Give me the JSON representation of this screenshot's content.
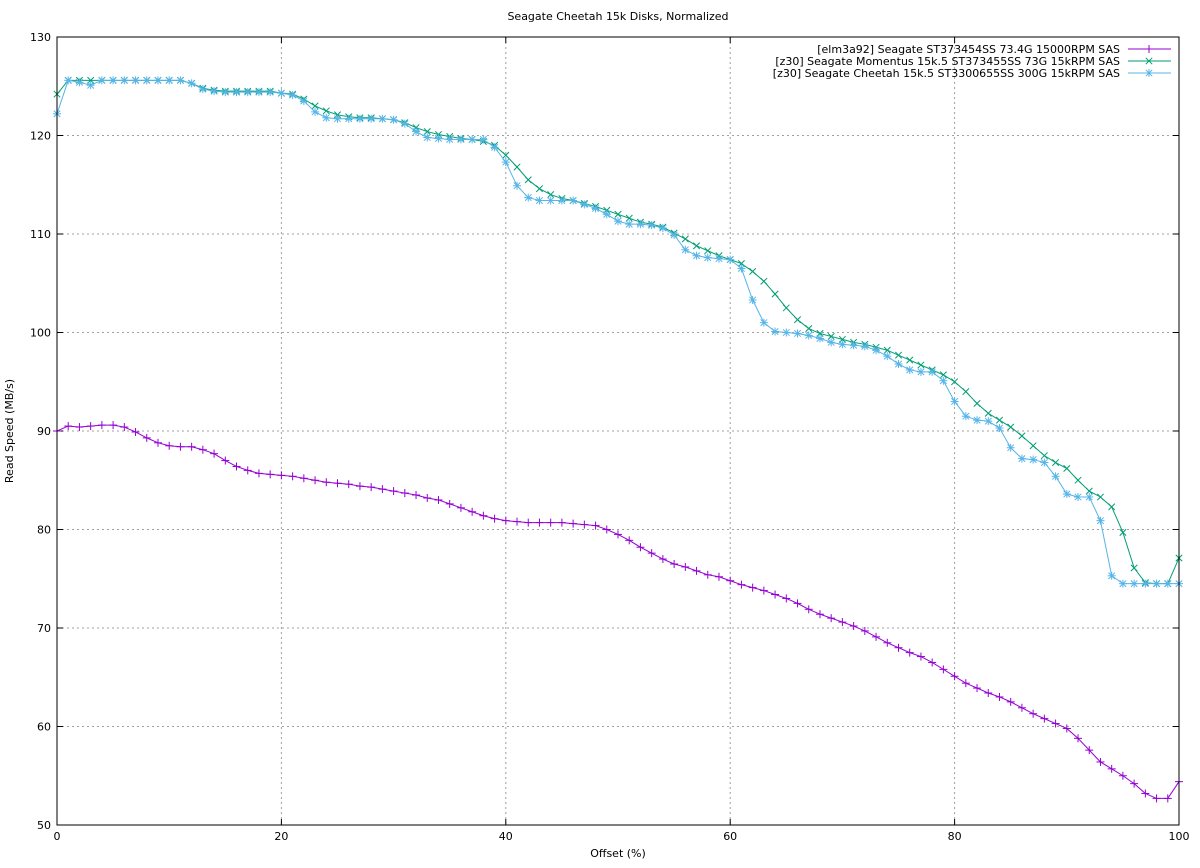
{
  "chart_data": {
    "type": "line",
    "title": "Seagate Cheetah 15k Disks, Normalized",
    "xlabel": "Offset (%)",
    "ylabel": "Read Speed (MB/s)",
    "xlim": [
      0,
      100
    ],
    "ylim": [
      50,
      130
    ],
    "xticks": [
      0,
      20,
      40,
      60,
      80,
      100
    ],
    "yticks": [
      50,
      60,
      70,
      80,
      90,
      100,
      110,
      120,
      130
    ],
    "grid": true,
    "legend_position": "top-right",
    "x": [
      0,
      1,
      2,
      3,
      4,
      5,
      6,
      7,
      8,
      9,
      10,
      11,
      12,
      13,
      14,
      15,
      16,
      17,
      18,
      19,
      20,
      21,
      22,
      23,
      24,
      25,
      26,
      27,
      28,
      29,
      30,
      31,
      32,
      33,
      34,
      35,
      36,
      37,
      38,
      39,
      40,
      41,
      42,
      43,
      44,
      45,
      46,
      47,
      48,
      49,
      50,
      51,
      52,
      53,
      54,
      55,
      56,
      57,
      58,
      59,
      60,
      61,
      62,
      63,
      64,
      65,
      66,
      67,
      68,
      69,
      70,
      71,
      72,
      73,
      74,
      75,
      76,
      77,
      78,
      79,
      80,
      81,
      82,
      83,
      84,
      85,
      86,
      87,
      88,
      89,
      90,
      91,
      92,
      93,
      94,
      95,
      96,
      97,
      98,
      99,
      100
    ],
    "series": [
      {
        "name": "[elm3a92] Seagate ST373454SS 73.4G 15000RPM SAS",
        "color": "#9400d3",
        "marker": "plus",
        "values": [
          90.0,
          90.5,
          90.4,
          90.5,
          90.6,
          90.6,
          90.4,
          89.9,
          89.3,
          88.8,
          88.5,
          88.4,
          88.4,
          88.1,
          87.7,
          87.0,
          86.4,
          86.0,
          85.7,
          85.6,
          85.5,
          85.4,
          85.2,
          85.0,
          84.8,
          84.7,
          84.6,
          84.4,
          84.3,
          84.1,
          83.9,
          83.7,
          83.5,
          83.2,
          83.0,
          82.6,
          82.2,
          81.8,
          81.4,
          81.1,
          80.9,
          80.8,
          80.7,
          80.7,
          80.7,
          80.7,
          80.6,
          80.5,
          80.4,
          80.0,
          79.5,
          78.9,
          78.2,
          77.6,
          77.0,
          76.5,
          76.2,
          75.8,
          75.4,
          75.2,
          74.8,
          74.4,
          74.1,
          73.8,
          73.4,
          73.0,
          72.5,
          71.9,
          71.4,
          71.0,
          70.6,
          70.2,
          69.7,
          69.1,
          68.5,
          68.0,
          67.5,
          67.1,
          66.5,
          65.8,
          65.1,
          64.4,
          63.9,
          63.4,
          63.0,
          62.5,
          61.9,
          61.3,
          60.8,
          60.3,
          59.8,
          58.8,
          57.6,
          56.4,
          55.7,
          55.0,
          54.2,
          53.2,
          52.7,
          52.7,
          54.4
        ]
      },
      {
        "name": "[z30] Seagate Momentus 15k.5 ST373455SS 73G 15kRPM SAS",
        "color": "#009e73",
        "marker": "cross",
        "values": [
          124.2,
          125.6,
          125.6,
          125.6,
          125.6,
          125.6,
          125.6,
          125.6,
          125.6,
          125.6,
          125.6,
          125.6,
          125.3,
          124.8,
          124.6,
          124.5,
          124.5,
          124.5,
          124.5,
          124.5,
          124.3,
          124.2,
          123.7,
          123.0,
          122.5,
          122.1,
          121.9,
          121.8,
          121.8,
          121.7,
          121.6,
          121.3,
          120.8,
          120.4,
          120.1,
          119.9,
          119.7,
          119.6,
          119.4,
          119.0,
          118.0,
          116.8,
          115.5,
          114.6,
          114.0,
          113.6,
          113.4,
          113.1,
          112.8,
          112.4,
          112.0,
          111.6,
          111.2,
          111.0,
          110.7,
          110.1,
          109.5,
          108.8,
          108.3,
          107.8,
          107.4,
          107.0,
          106.2,
          105.2,
          103.9,
          102.5,
          101.3,
          100.4,
          99.9,
          99.6,
          99.3,
          99.0,
          98.8,
          98.5,
          98.2,
          97.7,
          97.2,
          96.7,
          96.2,
          95.7,
          95.0,
          94.0,
          92.8,
          91.8,
          91.1,
          90.4,
          89.5,
          88.5,
          87.5,
          86.8,
          86.2,
          85.0,
          83.9,
          83.3,
          82.3,
          79.7,
          76.1,
          74.6,
          74.5,
          74.5,
          77.1
        ]
      },
      {
        "name": "[z30] Seagate Cheetah 15k.5 ST3300655SS 300G 15kRPM SAS",
        "color": "#56b4e9",
        "marker": "star",
        "values": [
          122.2,
          125.6,
          125.4,
          125.1,
          125.6,
          125.6,
          125.6,
          125.6,
          125.6,
          125.6,
          125.6,
          125.6,
          125.3,
          124.7,
          124.5,
          124.4,
          124.4,
          124.4,
          124.4,
          124.4,
          124.3,
          124.1,
          123.5,
          122.4,
          121.8,
          121.7,
          121.7,
          121.7,
          121.7,
          121.7,
          121.6,
          121.2,
          120.4,
          119.8,
          119.7,
          119.6,
          119.6,
          119.6,
          119.6,
          118.8,
          117.3,
          114.9,
          113.7,
          113.4,
          113.4,
          113.4,
          113.4,
          113.0,
          112.6,
          112.0,
          111.3,
          111.0,
          111.0,
          110.9,
          110.6,
          109.9,
          108.4,
          107.8,
          107.6,
          107.5,
          107.4,
          106.5,
          103.3,
          101.0,
          100.1,
          100.0,
          99.9,
          99.7,
          99.4,
          99.0,
          98.8,
          98.7,
          98.6,
          98.2,
          97.6,
          96.8,
          96.2,
          96.0,
          96.0,
          95.1,
          93.0,
          91.5,
          91.1,
          91.0,
          90.3,
          88.3,
          87.2,
          87.1,
          86.8,
          85.4,
          83.6,
          83.3,
          83.3,
          80.9,
          75.3,
          74.5,
          74.5,
          74.5,
          74.5,
          74.5,
          74.5
        ]
      }
    ]
  }
}
